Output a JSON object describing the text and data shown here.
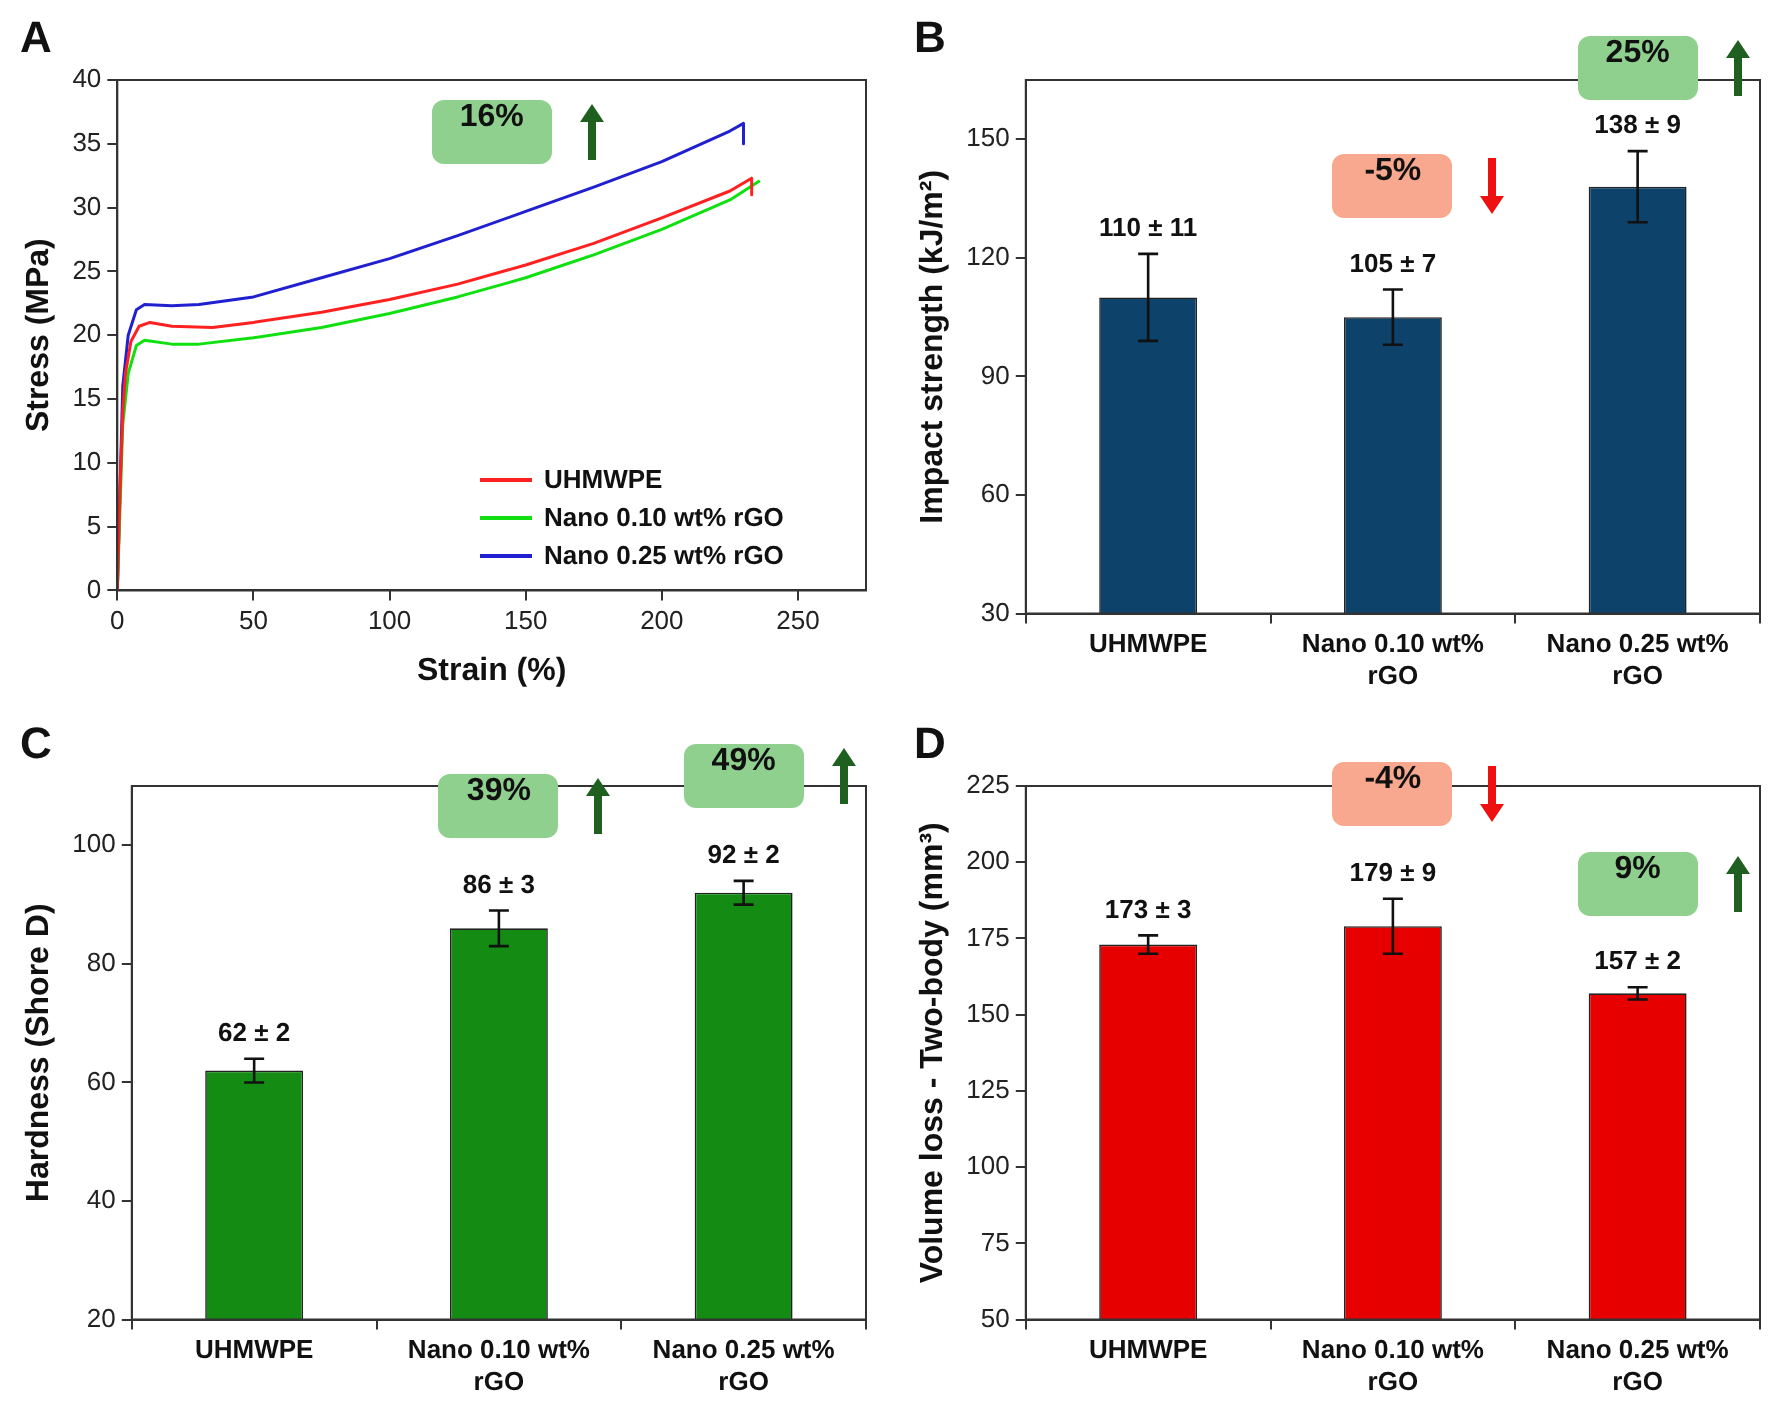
{
  "chart_data": [
    {
      "type": "line",
      "xlabel": "Strain (%)",
      "ylabel": "Stress (MPa)",
      "xlim": [
        0,
        275
      ],
      "xticks": [
        0,
        50,
        100,
        150,
        200,
        250
      ],
      "ylim": [
        0,
        40
      ],
      "yticks": [
        0,
        5,
        10,
        15,
        20,
        25,
        30,
        35,
        40
      ],
      "legend": "bottom right",
      "marker": "none",
      "line_style": "solid",
      "annotations": [
        "A",
        "16%"
      ],
      "series": [
        {
          "name": "UHMWPE",
          "color": "#ff2020",
          "x": [
            0,
            1,
            2,
            3,
            5,
            8,
            12,
            20,
            35,
            50,
            75,
            100,
            125,
            150,
            175,
            200,
            225,
            233,
            233
          ],
          "values": [
            0,
            8,
            14,
            17,
            19.5,
            20.7,
            21,
            20.7,
            20.6,
            21,
            21.8,
            22.8,
            24,
            25.5,
            27.2,
            29.2,
            31.3,
            32.3,
            31
          ]
        },
        {
          "name": "Nano 0.10 wt% rGO",
          "color": "#10e010",
          "x": [
            0,
            2,
            4,
            7,
            10,
            20,
            30,
            50,
            75,
            100,
            125,
            150,
            175,
            200,
            225,
            236
          ],
          "values": [
            0,
            13,
            17,
            19.2,
            19.6,
            19.3,
            19.3,
            19.8,
            20.6,
            21.7,
            23,
            24.5,
            26.3,
            28.3,
            30.6,
            32.1
          ]
        },
        {
          "name": "Nano 0.25 wt% rGO",
          "color": "#2020d0",
          "x": [
            0,
            2,
            4,
            7,
            10,
            20,
            30,
            50,
            75,
            100,
            125,
            150,
            175,
            200,
            225,
            230,
            230
          ],
          "values": [
            0,
            16,
            20,
            22,
            22.4,
            22.3,
            22.4,
            23,
            24.5,
            26,
            27.8,
            29.7,
            31.6,
            33.6,
            36,
            36.6,
            35
          ]
        }
      ]
    },
    {
      "type": "bar",
      "ylabel": "Impact strength (kJ/m²)",
      "categories": [
        "UHMWPE",
        "Nano 0.10 wt% rGO",
        "Nano 0.25 wt% rGO"
      ],
      "values": [
        110,
        105,
        138
      ],
      "errors": [
        11,
        7,
        9
      ],
      "value_labels": [
        "110 ± 11",
        "105 ± 7",
        "138 ± 9"
      ],
      "color": "#0d426b",
      "ylim": [
        30,
        165
      ],
      "yticks": [
        30,
        60,
        90,
        120,
        150
      ],
      "annotations": [
        "B",
        "-5%",
        "25%"
      ]
    },
    {
      "type": "bar",
      "ylabel": "Hardness (Shore D)",
      "categories": [
        "UHMWPE",
        "Nano 0.10 wt% rGO",
        "Nano 0.25 wt% rGO"
      ],
      "values": [
        62,
        86,
        92
      ],
      "errors": [
        2,
        3,
        2
      ],
      "value_labels": [
        "62 ± 2",
        "86 ± 3",
        "92 ± 2"
      ],
      "color": "#148c14",
      "ylim": [
        20,
        110
      ],
      "yticks": [
        20,
        40,
        60,
        80,
        100
      ],
      "annotations": [
        "C",
        "39%",
        "49%"
      ]
    },
    {
      "type": "bar",
      "ylabel": "Volume loss - Two-body (mm³)",
      "categories": [
        "UHMWPE",
        "Nano 0.10 wt% rGO",
        "Nano 0.25 wt% rGO"
      ],
      "values": [
        173,
        179,
        157
      ],
      "errors": [
        3,
        9,
        2
      ],
      "value_labels": [
        "173 ± 3",
        "179 ± 9",
        "157 ± 2"
      ],
      "color": "#e60000",
      "ylim": [
        50,
        225
      ],
      "yticks": [
        50,
        75,
        100,
        125,
        150,
        175,
        200,
        225
      ],
      "annotations": [
        "D",
        "-4%",
        "9%"
      ]
    }
  ]
}
